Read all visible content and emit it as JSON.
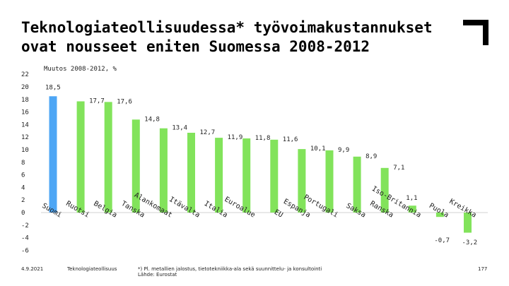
{
  "title": {
    "line1": "Teknologiateollisuudessa* työvoimakustannukset",
    "line2": "ovat nousseet eniten Suomessa 2008-2012"
  },
  "chart_data": {
    "type": "bar",
    "subtitle": "Muutos 2008-2012, %",
    "categories": [
      "Suomi",
      "Ruotsi",
      "Belgia",
      "Tanska",
      "Alankomaat",
      "Itävalta",
      "Italia",
      "Euroalue",
      "EU",
      "Espanja",
      "Portugali",
      "Saksa",
      "Ranska",
      "Iso-Britannia",
      "Puola",
      "Kreikka"
    ],
    "values": [
      18.5,
      17.7,
      17.6,
      14.8,
      13.4,
      12.7,
      11.9,
      11.8,
      11.6,
      10.1,
      9.9,
      8.9,
      7.1,
      1.1,
      -0.7,
      -3.2
    ],
    "value_labels": [
      "18,5",
      "17,7",
      "17,6",
      "14,8",
      "13,4",
      "12,7",
      "11,9",
      "11,8",
      "11,6",
      "10,1",
      "9,9",
      "8,9",
      "7,1",
      "1,1",
      "-0,7",
      "-3,2"
    ],
    "highlight_index": 0,
    "colors": {
      "highlight": "#4da6f5",
      "default": "#82e35b"
    },
    "ylim": [
      -6,
      22
    ],
    "yticks": [
      -6,
      -4,
      -2,
      0,
      2,
      4,
      6,
      8,
      10,
      12,
      14,
      16,
      18,
      20,
      22
    ],
    "grid": false,
    "legend": "none"
  },
  "footer": {
    "date": "4.9.2021",
    "org": "Teknologiateollisuus",
    "note": "*) Pl. metallien jalostus, tietotekniikka-ala sekä suunnittelu- ja konsultointi",
    "source": "Lähde: Eurostat",
    "page": "177"
  }
}
